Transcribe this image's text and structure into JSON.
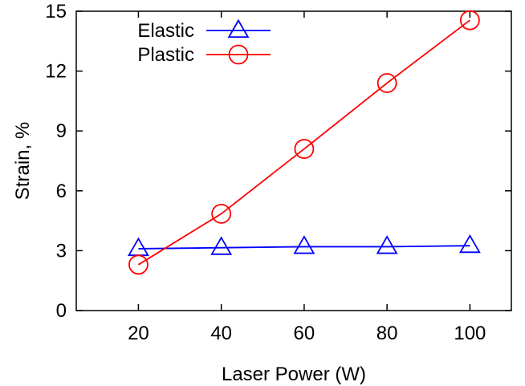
{
  "chart_data": {
    "type": "line",
    "title": "",
    "xlabel": "Laser Power (W)",
    "ylabel": "Strain, %",
    "x": [
      20,
      40,
      60,
      80,
      100
    ],
    "xlim": [
      5,
      110
    ],
    "ylim": [
      0,
      15
    ],
    "xticks": [
      20,
      40,
      60,
      80,
      100
    ],
    "yticks": [
      0,
      3,
      6,
      9,
      12,
      15
    ],
    "grid": false,
    "legend_position": "top-left",
    "series": [
      {
        "name": "Elastic",
        "values": [
          3.1,
          3.15,
          3.2,
          3.2,
          3.25
        ],
        "color": "#0000ff",
        "marker": "triangle"
      },
      {
        "name": "Plastic",
        "values": [
          2.3,
          4.85,
          8.1,
          11.4,
          14.55
        ],
        "color": "#ff0000",
        "marker": "circle"
      }
    ]
  }
}
